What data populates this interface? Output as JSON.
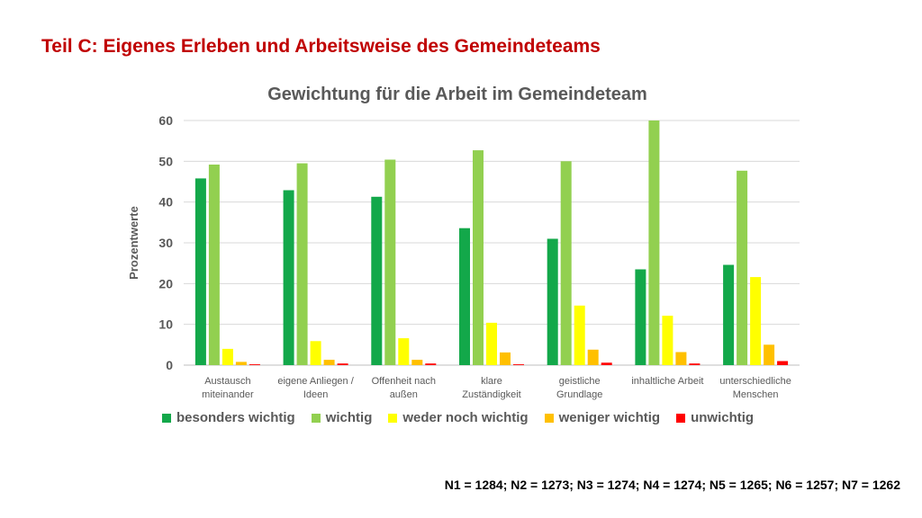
{
  "slide_title": "Teil C: Eigenes Erleben und Arbeitsweise des Gemeindeteams",
  "footnote": "N1 = 1284; N2 = 1273; N3 = 1274; N4 = 1274; N5 = 1265; N6 = 1257; N7 = 1262",
  "chart_data": {
    "type": "bar",
    "title": "Gewichtung für die Arbeit im Gemeindeteam",
    "ylabel": "Prozentwerte",
    "xlabel": "",
    "ylim": [
      0,
      60
    ],
    "yticks": [
      0,
      10,
      20,
      30,
      40,
      50,
      60
    ],
    "grid": true,
    "legend_position": "bottom",
    "categories": [
      [
        "Austausch",
        "miteinander"
      ],
      [
        "eigene Anliegen /",
        "Ideen"
      ],
      [
        "Offenheit nach",
        "außen"
      ],
      [
        "klare",
        "Zuständigkeit"
      ],
      [
        "geistliche",
        "Grundlage"
      ],
      [
        "inhaltliche Arbeit"
      ],
      [
        "unterschiedliche",
        "Menschen"
      ]
    ],
    "series": [
      {
        "name": "besonders wichtig",
        "color": "#13a84a",
        "values": [
          45.8,
          42.9,
          41.3,
          33.6,
          31.0,
          23.5,
          24.6
        ]
      },
      {
        "name": "wichtig",
        "color": "#92d050",
        "values": [
          49.2,
          49.5,
          50.4,
          52.7,
          50.0,
          60.0,
          47.7
        ]
      },
      {
        "name": "weder noch wichtig",
        "color": "#ffff00",
        "values": [
          4.0,
          5.9,
          6.6,
          10.4,
          14.6,
          12.1,
          21.6
        ]
      },
      {
        "name": "weniger wichtig",
        "color": "#ffc000",
        "values": [
          0.8,
          1.3,
          1.3,
          3.1,
          3.8,
          3.2,
          5.0
        ]
      },
      {
        "name": "unwichtig",
        "color": "#ff0000",
        "values": [
          0.2,
          0.4,
          0.4,
          0.2,
          0.6,
          0.4,
          1.0
        ]
      }
    ]
  }
}
